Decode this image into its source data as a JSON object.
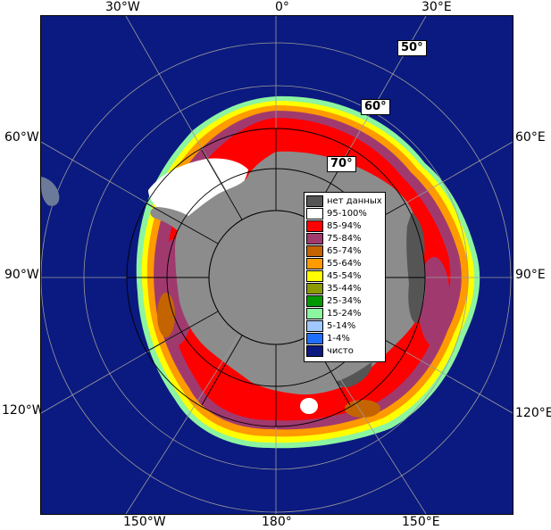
{
  "map": {
    "projection": "polar-stereographic-south",
    "edge_labels": {
      "top": [
        "30°W",
        "0°",
        "30°E"
      ],
      "left": [
        "60°W",
        "90°W",
        "120°W"
      ],
      "right": [
        "60°E",
        "90°E",
        "120°E"
      ],
      "bottom": [
        "150°W",
        "180°",
        "150°E"
      ]
    },
    "latitude_labels": [
      "50°",
      "60°",
      "70°"
    ],
    "colors": {
      "ocean": "#0b1a80",
      "land": "#8c8c8c",
      "no_data": "#555555",
      "graticule_light": "#9a9a9a",
      "graticule_dark": "#000000"
    }
  },
  "legend": [
    {
      "label": "нет данных",
      "color": "#555555"
    },
    {
      "label": "95-100%",
      "color": "#ffffff"
    },
    {
      "label": "85-94%",
      "color": "#ff0000"
    },
    {
      "label": "75-84%",
      "color": "#a03a6e"
    },
    {
      "label": "65-74%",
      "color": "#c46400"
    },
    {
      "label": "55-64%",
      "color": "#ff9a00"
    },
    {
      "label": "45-54%",
      "color": "#ffff00"
    },
    {
      "label": "35-44%",
      "color": "#8a9a00"
    },
    {
      "label": "25-34%",
      "color": "#009a00"
    },
    {
      "label": "15-24%",
      "color": "#8cf5a0"
    },
    {
      "label": "5-14%",
      "color": "#a0c8ff"
    },
    {
      "label": "1-4%",
      "color": "#1e6eff"
    },
    {
      "label": "чисто",
      "color": "#0b1a80"
    }
  ]
}
